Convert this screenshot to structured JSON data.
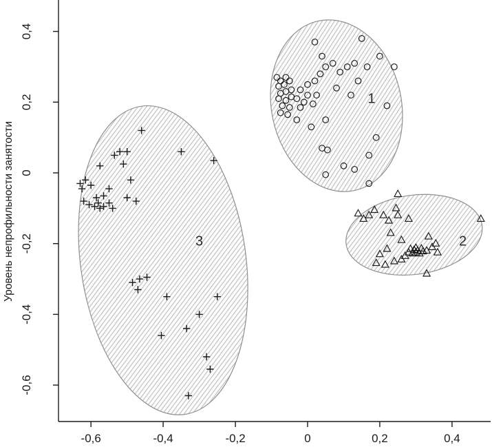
{
  "figure": {
    "ylabel": "Уровень непрофильности занятости"
  },
  "chart_data": {
    "type": "scatter",
    "title": "",
    "xlabel": "",
    "ylabel": "Уровень непрофильности занятости",
    "xlim": [
      -0.69,
      0.507
    ],
    "ylim": [
      -0.703,
      0.485
    ],
    "grid": false,
    "legend": "none",
    "x_ticks": [
      {
        "v": -0.6,
        "label": "-0,6"
      },
      {
        "v": -0.4,
        "label": "-0,4"
      },
      {
        "v": -0.2,
        "label": "-0,2"
      },
      {
        "v": 0,
        "label": "0"
      },
      {
        "v": 0.2,
        "label": "0,2"
      },
      {
        "v": 0.4,
        "label": "0,4"
      }
    ],
    "y_ticks": [
      {
        "v": -0.6,
        "label": "-0,6"
      },
      {
        "v": -0.4,
        "label": "-0,4"
      },
      {
        "v": -0.2,
        "label": "-0,2"
      },
      {
        "v": 0,
        "label": "0"
      },
      {
        "v": 0.2,
        "label": "0,2"
      },
      {
        "v": 0.4,
        "label": "0,4"
      }
    ],
    "colors": {
      "point": "#1a1a1a",
      "ellipse_stroke": "#8f8f8f",
      "hatch": "#b8b8b8",
      "hatch_bg": "#fdfdfd",
      "axis": "#1a1a1a",
      "label": "#2a2a2a"
    },
    "clusters": [
      {
        "name": "1",
        "symbol": "circle",
        "label_pos": [
          0.177,
          0.198
        ],
        "ellipse": {
          "cx": 0.08,
          "cy": 0.19,
          "rx": 0.18,
          "ry": 0.245,
          "rot": -12
        },
        "points": [
          [
            -0.085,
            0.27
          ],
          [
            -0.075,
            0.26
          ],
          [
            -0.06,
            0.27
          ],
          [
            -0.08,
            0.245
          ],
          [
            -0.065,
            0.25
          ],
          [
            -0.05,
            0.26
          ],
          [
            -0.075,
            0.225
          ],
          [
            -0.06,
            0.23
          ],
          [
            -0.045,
            0.235
          ],
          [
            -0.08,
            0.21
          ],
          [
            -0.06,
            0.205
          ],
          [
            -0.045,
            0.215
          ],
          [
            -0.07,
            0.19
          ],
          [
            -0.05,
            0.185
          ],
          [
            -0.03,
            0.21
          ],
          [
            -0.075,
            0.17
          ],
          [
            -0.055,
            0.165
          ],
          [
            -0.02,
            0.235
          ],
          [
            0.0,
            0.22
          ],
          [
            -0.01,
            0.2
          ],
          [
            0.015,
            0.195
          ],
          [
            -0.02,
            0.185
          ],
          [
            0.025,
            0.22
          ],
          [
            0.0,
            0.25
          ],
          [
            0.02,
            0.26
          ],
          [
            0.035,
            0.28
          ],
          [
            0.05,
            0.3
          ],
          [
            0.07,
            0.31
          ],
          [
            0.04,
            0.33
          ],
          [
            0.02,
            0.37
          ],
          [
            0.09,
            0.285
          ],
          [
            0.11,
            0.3
          ],
          [
            0.13,
            0.31
          ],
          [
            0.15,
            0.38
          ],
          [
            0.165,
            0.3
          ],
          [
            0.2,
            0.33
          ],
          [
            0.24,
            0.3
          ],
          [
            0.14,
            0.26
          ],
          [
            0.12,
            0.22
          ],
          [
            0.22,
            0.19
          ],
          [
            0.05,
            0.15
          ],
          [
            0.01,
            0.13
          ],
          [
            0.04,
            0.07
          ],
          [
            0.055,
            0.065
          ],
          [
            0.1,
            0.02
          ],
          [
            0.13,
            0.01
          ],
          [
            0.05,
            -0.005
          ],
          [
            0.17,
            0.05
          ],
          [
            0.19,
            0.1
          ],
          [
            -0.03,
            0.15
          ],
          [
            0.17,
            -0.03
          ],
          [
            0.08,
            0.24
          ]
        ]
      },
      {
        "name": "2",
        "symbol": "triangle",
        "label_pos": [
          0.43,
          -0.205
        ],
        "ellipse": {
          "cx": 0.295,
          "cy": -0.175,
          "rx": 0.19,
          "ry": 0.112,
          "rot": -8
        },
        "points": [
          [
            0.14,
            -0.115
          ],
          [
            0.155,
            -0.13
          ],
          [
            0.17,
            -0.12
          ],
          [
            0.185,
            -0.105
          ],
          [
            0.21,
            -0.12
          ],
          [
            0.225,
            -0.135
          ],
          [
            0.25,
            -0.12
          ],
          [
            0.245,
            -0.1
          ],
          [
            0.28,
            -0.13
          ],
          [
            0.25,
            -0.06
          ],
          [
            0.48,
            -0.13
          ],
          [
            0.23,
            -0.17
          ],
          [
            0.26,
            -0.19
          ],
          [
            0.2,
            -0.23
          ],
          [
            0.22,
            -0.215
          ],
          [
            0.19,
            -0.255
          ],
          [
            0.215,
            -0.26
          ],
          [
            0.24,
            -0.25
          ],
          [
            0.26,
            -0.245
          ],
          [
            0.27,
            -0.235
          ],
          [
            0.28,
            -0.225
          ],
          [
            0.285,
            -0.215
          ],
          [
            0.29,
            -0.228
          ],
          [
            0.295,
            -0.218
          ],
          [
            0.3,
            -0.212
          ],
          [
            0.3,
            -0.225
          ],
          [
            0.305,
            -0.22
          ],
          [
            0.31,
            -0.228
          ],
          [
            0.315,
            -0.214
          ],
          [
            0.32,
            -0.222
          ],
          [
            0.33,
            -0.22
          ],
          [
            0.335,
            -0.18
          ],
          [
            0.345,
            -0.21
          ],
          [
            0.355,
            -0.2
          ],
          [
            0.36,
            -0.225
          ],
          [
            0.33,
            -0.285
          ]
        ]
      },
      {
        "name": "3",
        "symbol": "plus",
        "label_pos": [
          -0.3,
          -0.205
        ],
        "ellipse": {
          "cx": -0.4,
          "cy": -0.247,
          "rx": 0.229,
          "ry": 0.44,
          "rot": -8
        },
        "points": [
          [
            -0.63,
            -0.03
          ],
          [
            -0.625,
            -0.045
          ],
          [
            -0.615,
            -0.02
          ],
          [
            -0.6,
            -0.035
          ],
          [
            -0.62,
            -0.08
          ],
          [
            -0.605,
            -0.09
          ],
          [
            -0.59,
            -0.095
          ],
          [
            -0.58,
            -0.085
          ],
          [
            -0.575,
            -0.1
          ],
          [
            -0.565,
            -0.095
          ],
          [
            -0.585,
            -0.07
          ],
          [
            -0.565,
            -0.065
          ],
          [
            -0.55,
            -0.085
          ],
          [
            -0.54,
            -0.1
          ],
          [
            -0.55,
            -0.045
          ],
          [
            -0.575,
            0.02
          ],
          [
            -0.535,
            0.05
          ],
          [
            -0.52,
            0.06
          ],
          [
            -0.5,
            0.06
          ],
          [
            -0.51,
            0.025
          ],
          [
            -0.49,
            -0.02
          ],
          [
            -0.5,
            -0.07
          ],
          [
            -0.475,
            -0.08
          ],
          [
            -0.46,
            0.12
          ],
          [
            -0.35,
            0.06
          ],
          [
            -0.26,
            0.035
          ],
          [
            -0.485,
            -0.31
          ],
          [
            -0.465,
            -0.3
          ],
          [
            -0.445,
            -0.295
          ],
          [
            -0.47,
            -0.33
          ],
          [
            -0.39,
            -0.35
          ],
          [
            -0.25,
            -0.35
          ],
          [
            -0.3,
            -0.4
          ],
          [
            -0.335,
            -0.44
          ],
          [
            -0.405,
            -0.46
          ],
          [
            -0.28,
            -0.52
          ],
          [
            -0.27,
            -0.555
          ],
          [
            -0.33,
            -0.63
          ]
        ]
      }
    ]
  }
}
